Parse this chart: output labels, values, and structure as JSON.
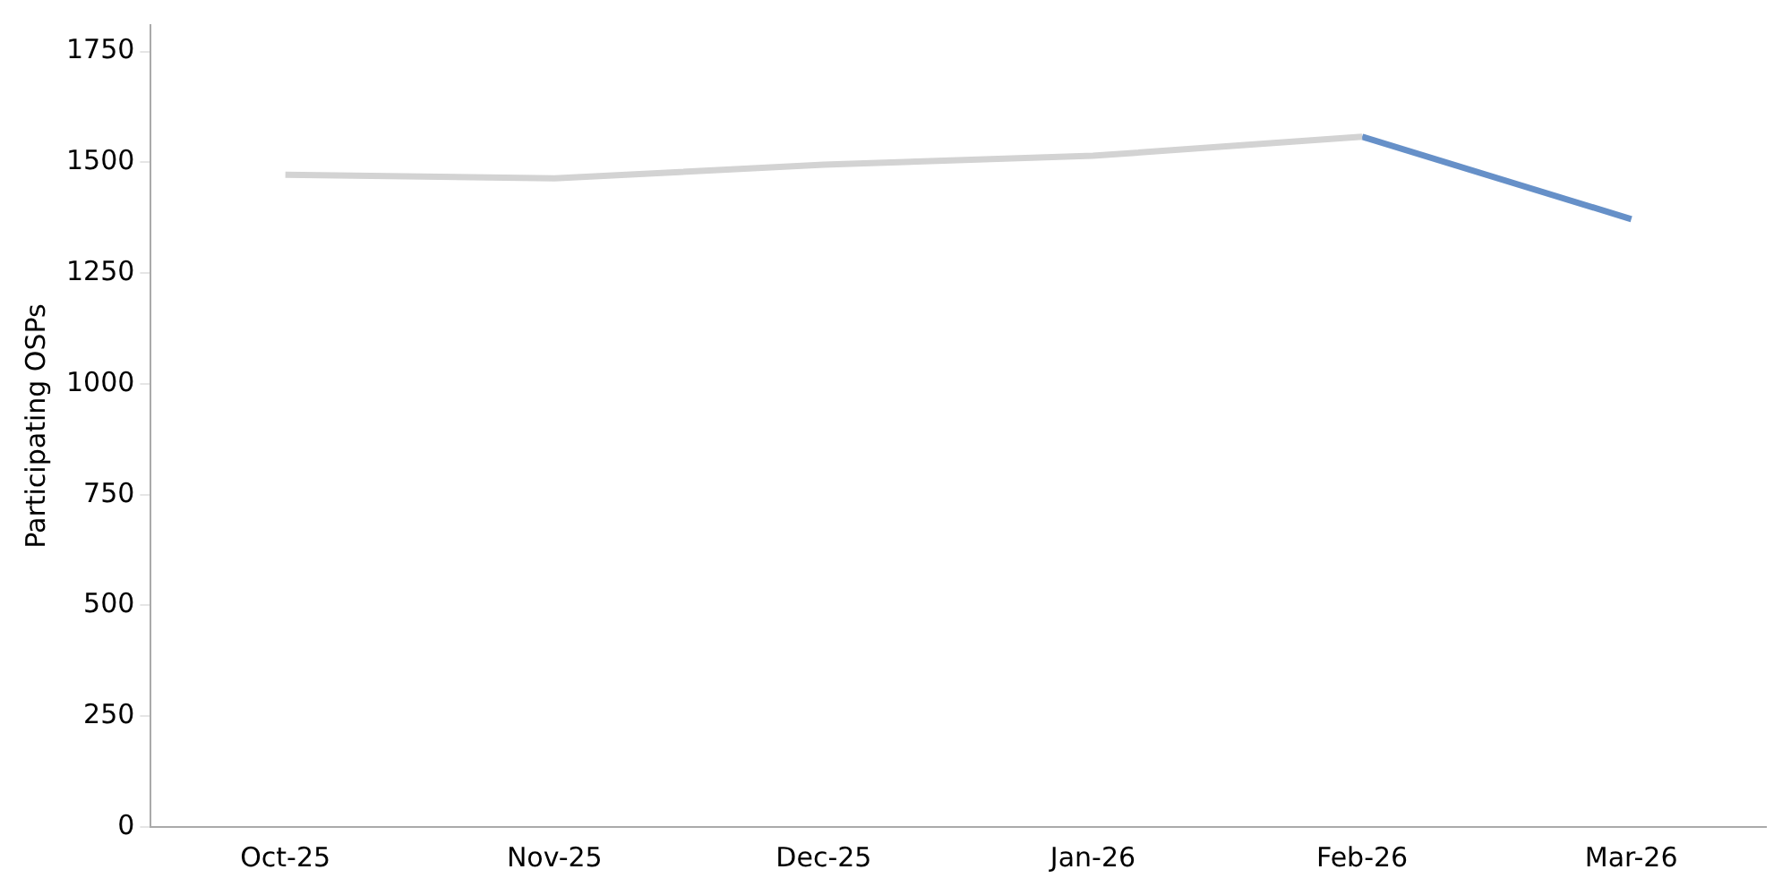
{
  "chart_data": {
    "type": "line",
    "ylabel": "Participating OSPs",
    "categories": [
      "Oct-25",
      "Nov-25",
      "Dec-25",
      "Jan-26",
      "Feb-26",
      "Mar-26"
    ],
    "series": [
      {
        "color": "#d3d3d3",
        "values": [
          1472,
          1464,
          1495,
          1515,
          1558,
          null
        ]
      },
      {
        "color": "#6690c8",
        "values": [
          null,
          null,
          null,
          null,
          1558,
          1372
        ]
      }
    ],
    "ylim": [
      0,
      1810
    ],
    "yticks": [
      0,
      250,
      500,
      750,
      1000,
      1250,
      1500,
      1750
    ],
    "grid": false,
    "legend": false,
    "marker": "none"
  }
}
